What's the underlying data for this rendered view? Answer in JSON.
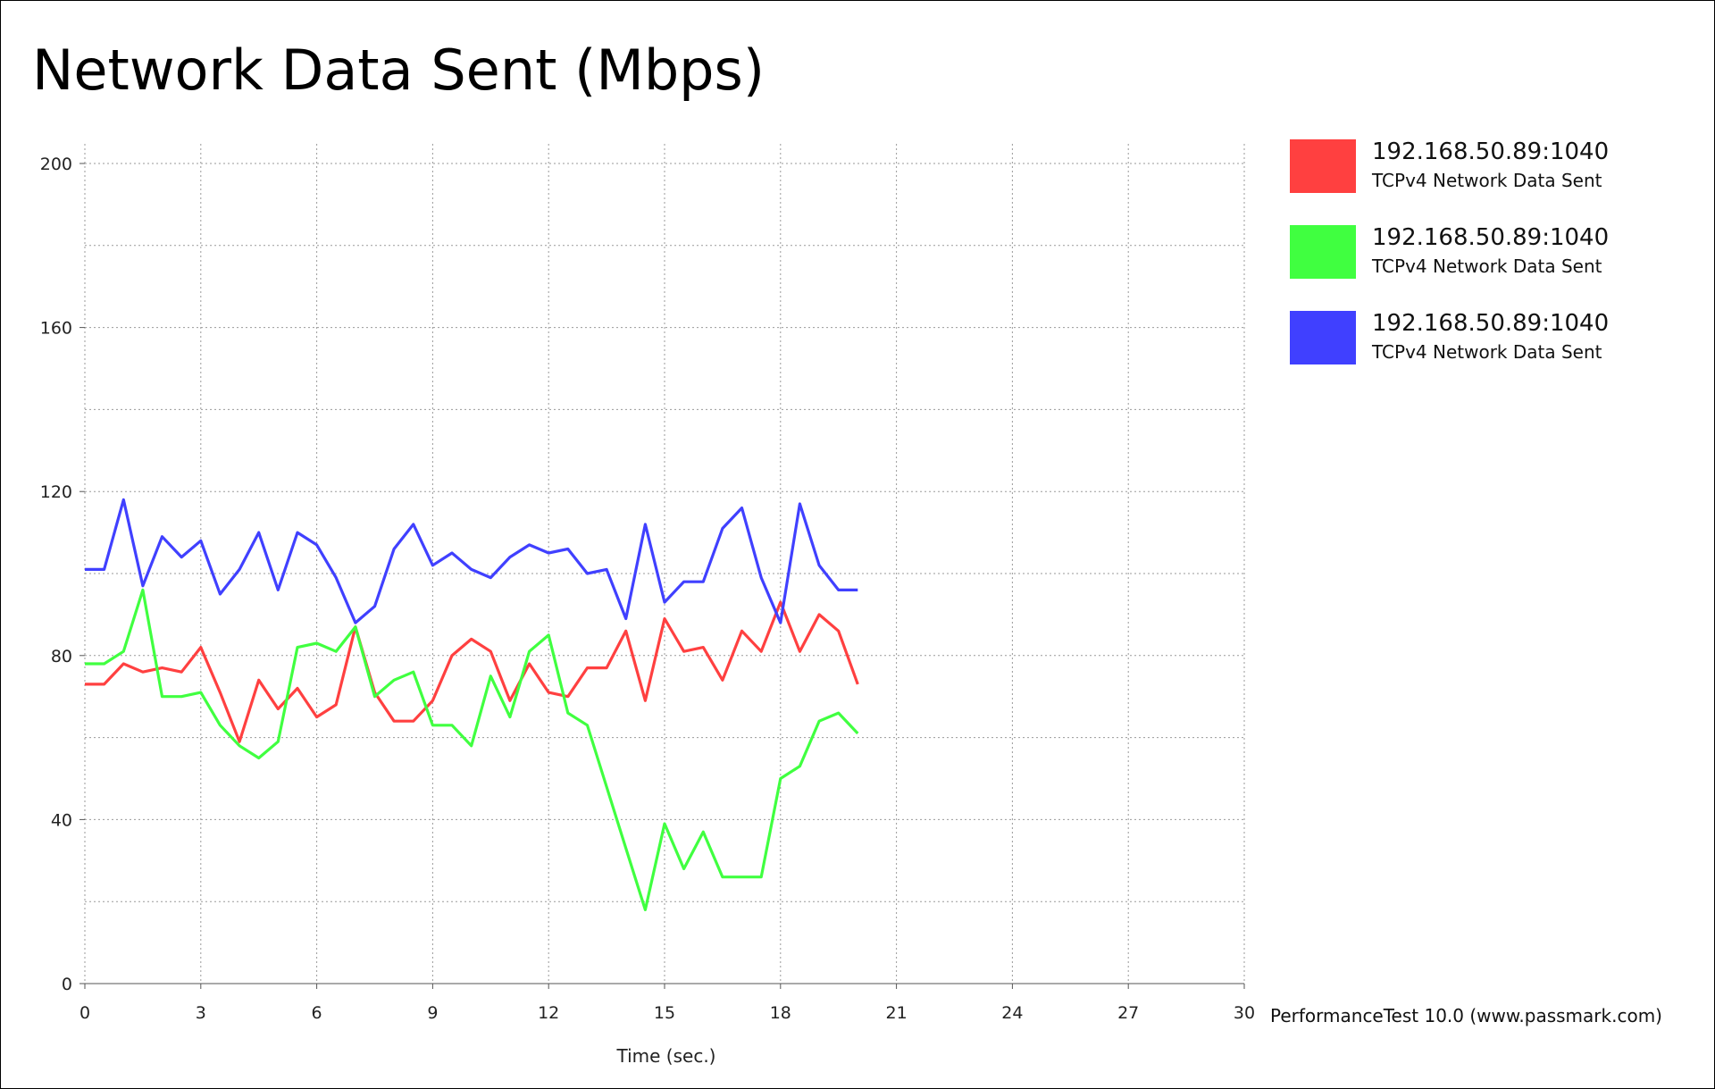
{
  "chart_data": {
    "type": "line",
    "title": "Network Data Sent (Mbps)",
    "xlabel": "Time (sec.)",
    "ylabel": "",
    "xlim": [
      0,
      30
    ],
    "ylim": [
      0,
      200
    ],
    "x_ticks": [
      0,
      3,
      6,
      9,
      12,
      15,
      18,
      21,
      24,
      27,
      30
    ],
    "y_ticks": [
      0,
      40,
      80,
      120,
      160,
      200
    ],
    "grid": true,
    "legend_position": "right",
    "x": [
      0,
      0.5,
      1,
      1.5,
      2,
      2.5,
      3,
      3.5,
      4,
      4.5,
      5,
      5.5,
      6,
      6.5,
      7,
      7.5,
      8,
      8.5,
      9,
      9.5,
      10,
      10.5,
      11,
      11.5,
      12,
      12.5,
      13,
      13.5,
      14,
      14.5,
      15,
      15.5,
      16,
      16.5,
      17,
      17.5,
      18,
      18.5,
      19,
      19.5,
      20
    ],
    "series": [
      {
        "name": "192.168.50.89:1040",
        "description": "TCPv4 Network Data Sent",
        "color": "#ff4040",
        "values": [
          73,
          73,
          78,
          76,
          77,
          76,
          82,
          71,
          59,
          74,
          67,
          72,
          65,
          68,
          87,
          71,
          64,
          64,
          69,
          80,
          84,
          81,
          69,
          78,
          71,
          70,
          77,
          77,
          86,
          69,
          89,
          81,
          82,
          74,
          86,
          81,
          93,
          81,
          90,
          86,
          73
        ]
      },
      {
        "name": "192.168.50.89:1040",
        "description": "TCPv4 Network Data Sent",
        "color": "#40ff40",
        "values": [
          78,
          78,
          81,
          96,
          70,
          70,
          71,
          63,
          58,
          55,
          59,
          82,
          83,
          81,
          87,
          70,
          74,
          76,
          63,
          63,
          58,
          75,
          65,
          81,
          85,
          66,
          63,
          48,
          33,
          18,
          39,
          28,
          37,
          26,
          26,
          26,
          50,
          53,
          64,
          66,
          61
        ]
      },
      {
        "name": "192.168.50.89:1040",
        "description": "TCPv4 Network Data Sent",
        "color": "#4040ff",
        "values": [
          101,
          101,
          118,
          97,
          109,
          104,
          108,
          95,
          101,
          110,
          96,
          110,
          107,
          99,
          88,
          92,
          106,
          112,
          102,
          105,
          101,
          99,
          104,
          107,
          105,
          106,
          100,
          101,
          89,
          112,
          93,
          98,
          98,
          111,
          116,
          99,
          88,
          117,
          102,
          96,
          96
        ]
      }
    ]
  },
  "credit": "PerformanceTest 10.0 (www.passmark.com)"
}
